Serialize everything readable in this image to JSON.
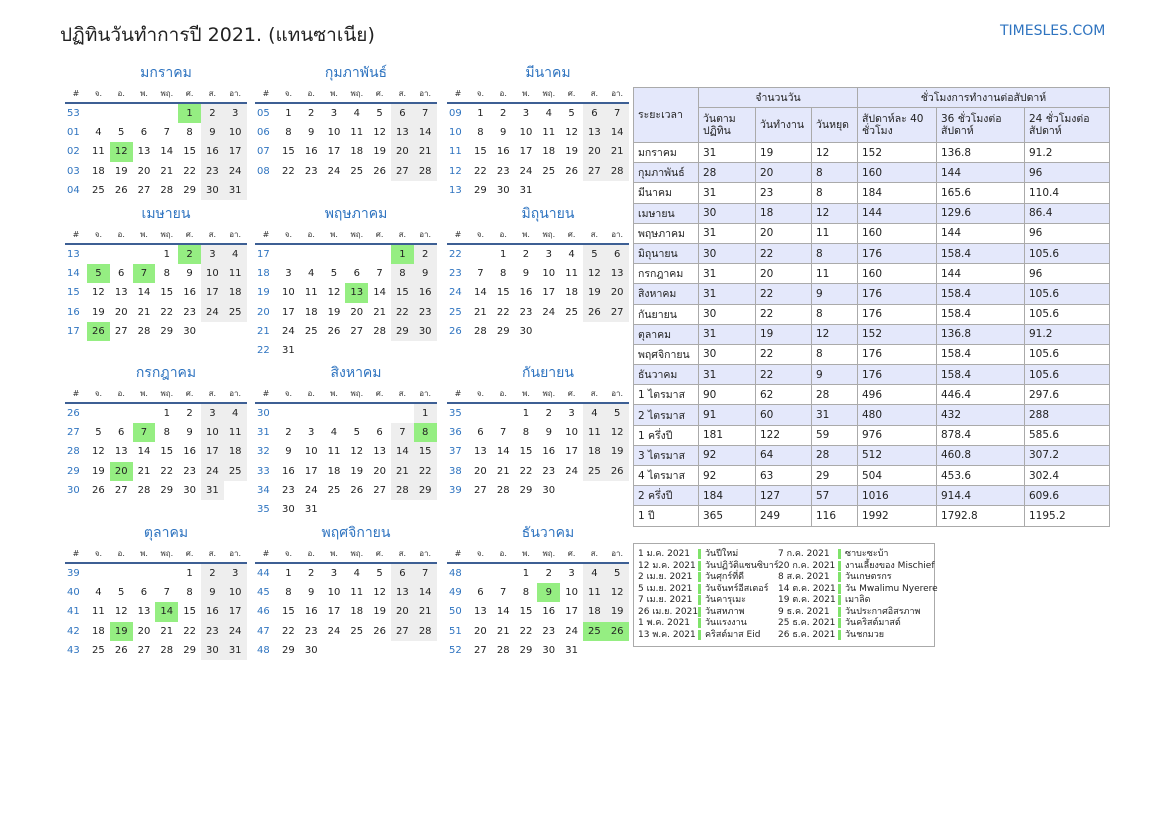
{
  "title": "ปฏิทินวันทำการปี 2021. (แทนซาเนีย)",
  "brand": "TIMESLES.COM",
  "colors": {
    "accent": "#2f74c0",
    "holiday": "#95ee82",
    "weekend": "#eeeeee",
    "row_alt": "#e4e8fb"
  },
  "weekday_headers": [
    "#",
    "จ.",
    "อ.",
    "พ.",
    "พฤ.",
    "ศ.",
    "ส.",
    "อา."
  ],
  "months": [
    {
      "name": "มกราคม",
      "weeks": [
        [
          "53",
          "",
          "",
          "",
          "",
          "1",
          "2",
          "3"
        ],
        [
          "01",
          "4",
          "5",
          "6",
          "7",
          "8",
          "9",
          "10"
        ],
        [
          "02",
          "11",
          "12",
          "13",
          "14",
          "15",
          "16",
          "17"
        ],
        [
          "03",
          "18",
          "19",
          "20",
          "21",
          "22",
          "23",
          "24"
        ],
        [
          "04",
          "25",
          "26",
          "27",
          "28",
          "29",
          "30",
          "31"
        ]
      ],
      "holidays": [
        "1",
        "12"
      ]
    },
    {
      "name": "กุมภาพันธ์",
      "weeks": [
        [
          "05",
          "1",
          "2",
          "3",
          "4",
          "5",
          "6",
          "7"
        ],
        [
          "06",
          "8",
          "9",
          "10",
          "11",
          "12",
          "13",
          "14"
        ],
        [
          "07",
          "15",
          "16",
          "17",
          "18",
          "19",
          "20",
          "21"
        ],
        [
          "08",
          "22",
          "23",
          "24",
          "25",
          "26",
          "27",
          "28"
        ]
      ],
      "holidays": []
    },
    {
      "name": "มีนาคม",
      "weeks": [
        [
          "09",
          "1",
          "2",
          "3",
          "4",
          "5",
          "6",
          "7"
        ],
        [
          "10",
          "8",
          "9",
          "10",
          "11",
          "12",
          "13",
          "14"
        ],
        [
          "11",
          "15",
          "16",
          "17",
          "18",
          "19",
          "20",
          "21"
        ],
        [
          "12",
          "22",
          "23",
          "24",
          "25",
          "26",
          "27",
          "28"
        ],
        [
          "13",
          "29",
          "30",
          "31",
          "",
          "",
          "",
          ""
        ]
      ],
      "holidays": []
    },
    {
      "name": "เมษายน",
      "weeks": [
        [
          "13",
          "",
          "",
          "",
          "1",
          "2",
          "3",
          "4"
        ],
        [
          "14",
          "5",
          "6",
          "7",
          "8",
          "9",
          "10",
          "11"
        ],
        [
          "15",
          "12",
          "13",
          "14",
          "15",
          "16",
          "17",
          "18"
        ],
        [
          "16",
          "19",
          "20",
          "21",
          "22",
          "23",
          "24",
          "25"
        ],
        [
          "17",
          "26",
          "27",
          "28",
          "29",
          "30",
          "",
          ""
        ]
      ],
      "holidays": [
        "2",
        "5",
        "7",
        "26"
      ]
    },
    {
      "name": "พฤษภาคม",
      "weeks": [
        [
          "17",
          "",
          "",
          "",
          "",
          "",
          "1",
          "2"
        ],
        [
          "18",
          "3",
          "4",
          "5",
          "6",
          "7",
          "8",
          "9"
        ],
        [
          "19",
          "10",
          "11",
          "12",
          "13",
          "14",
          "15",
          "16"
        ],
        [
          "20",
          "17",
          "18",
          "19",
          "20",
          "21",
          "22",
          "23"
        ],
        [
          "21",
          "24",
          "25",
          "26",
          "27",
          "28",
          "29",
          "30"
        ],
        [
          "22",
          "31",
          "",
          "",
          "",
          "",
          "",
          ""
        ]
      ],
      "holidays": [
        "1",
        "13"
      ]
    },
    {
      "name": "มิถุนายน",
      "weeks": [
        [
          "22",
          "",
          "1",
          "2",
          "3",
          "4",
          "5",
          "6"
        ],
        [
          "23",
          "7",
          "8",
          "9",
          "10",
          "11",
          "12",
          "13"
        ],
        [
          "24",
          "14",
          "15",
          "16",
          "17",
          "18",
          "19",
          "20"
        ],
        [
          "25",
          "21",
          "22",
          "23",
          "24",
          "25",
          "26",
          "27"
        ],
        [
          "26",
          "28",
          "29",
          "30",
          "",
          "",
          "",
          ""
        ]
      ],
      "holidays": []
    },
    {
      "name": "กรกฎาคม",
      "weeks": [
        [
          "26",
          "",
          "",
          "",
          "1",
          "2",
          "3",
          "4"
        ],
        [
          "27",
          "5",
          "6",
          "7",
          "8",
          "9",
          "10",
          "11"
        ],
        [
          "28",
          "12",
          "13",
          "14",
          "15",
          "16",
          "17",
          "18"
        ],
        [
          "29",
          "19",
          "20",
          "21",
          "22",
          "23",
          "24",
          "25"
        ],
        [
          "30",
          "26",
          "27",
          "28",
          "29",
          "30",
          "31",
          ""
        ]
      ],
      "holidays": [
        "7",
        "20"
      ]
    },
    {
      "name": "สิงหาคม",
      "weeks": [
        [
          "30",
          "",
          "",
          "",
          "",
          "",
          "",
          "1"
        ],
        [
          "31",
          "2",
          "3",
          "4",
          "5",
          "6",
          "7",
          "8"
        ],
        [
          "32",
          "9",
          "10",
          "11",
          "12",
          "13",
          "14",
          "15"
        ],
        [
          "33",
          "16",
          "17",
          "18",
          "19",
          "20",
          "21",
          "22"
        ],
        [
          "34",
          "23",
          "24",
          "25",
          "26",
          "27",
          "28",
          "29"
        ],
        [
          "35",
          "30",
          "31",
          "",
          "",
          "",
          "",
          ""
        ]
      ],
      "holidays": [
        "8"
      ]
    },
    {
      "name": "กันยายน",
      "weeks": [
        [
          "35",
          "",
          "",
          "1",
          "2",
          "3",
          "4",
          "5"
        ],
        [
          "36",
          "6",
          "7",
          "8",
          "9",
          "10",
          "11",
          "12"
        ],
        [
          "37",
          "13",
          "14",
          "15",
          "16",
          "17",
          "18",
          "19"
        ],
        [
          "38",
          "20",
          "21",
          "22",
          "23",
          "24",
          "25",
          "26"
        ],
        [
          "39",
          "27",
          "28",
          "29",
          "30",
          "",
          "",
          ""
        ]
      ],
      "holidays": []
    },
    {
      "name": "ตุลาคม",
      "weeks": [
        [
          "39",
          "",
          "",
          "",
          "",
          "1",
          "2",
          "3"
        ],
        [
          "40",
          "4",
          "5",
          "6",
          "7",
          "8",
          "9",
          "10"
        ],
        [
          "41",
          "11",
          "12",
          "13",
          "14",
          "15",
          "16",
          "17"
        ],
        [
          "42",
          "18",
          "19",
          "20",
          "21",
          "22",
          "23",
          "24"
        ],
        [
          "43",
          "25",
          "26",
          "27",
          "28",
          "29",
          "30",
          "31"
        ]
      ],
      "holidays": [
        "14",
        "19"
      ]
    },
    {
      "name": "พฤศจิกายน",
      "weeks": [
        [
          "44",
          "1",
          "2",
          "3",
          "4",
          "5",
          "6",
          "7"
        ],
        [
          "45",
          "8",
          "9",
          "10",
          "11",
          "12",
          "13",
          "14"
        ],
        [
          "46",
          "15",
          "16",
          "17",
          "18",
          "19",
          "20",
          "21"
        ],
        [
          "47",
          "22",
          "23",
          "24",
          "25",
          "26",
          "27",
          "28"
        ],
        [
          "48",
          "29",
          "30",
          "",
          "",
          "",
          "",
          ""
        ]
      ],
      "holidays": []
    },
    {
      "name": "ธันวาคม",
      "weeks": [
        [
          "48",
          "",
          "",
          "1",
          "2",
          "3",
          "4",
          "5"
        ],
        [
          "49",
          "6",
          "7",
          "8",
          "9",
          "10",
          "11",
          "12"
        ],
        [
          "50",
          "13",
          "14",
          "15",
          "16",
          "17",
          "18",
          "19"
        ],
        [
          "51",
          "20",
          "21",
          "22",
          "23",
          "24",
          "25",
          "26"
        ],
        [
          "52",
          "27",
          "28",
          "29",
          "30",
          "31",
          "",
          ""
        ]
      ],
      "holidays": [
        "9",
        "25",
        "26"
      ]
    }
  ],
  "summary": {
    "period_header": "ระยะเวลา",
    "days_group": "จำนวนวัน",
    "hours_group": "ชั่วโมงการทำงานต่อสัปดาห์",
    "columns": [
      "วันตามปฏิทิน",
      "วันทำงาน",
      "วันหยุด",
      "สัปดาห์ละ 40 ชั่วโมง",
      "36 ชั่วโมงต่อสัปดาห์",
      "24 ชั่วโมงต่อสัปดาห์"
    ],
    "rows": [
      [
        "มกราคม",
        "31",
        "19",
        "12",
        "152",
        "136.8",
        "91.2"
      ],
      [
        "กุมภาพันธ์",
        "28",
        "20",
        "8",
        "160",
        "144",
        "96"
      ],
      [
        "มีนาคม",
        "31",
        "23",
        "8",
        "184",
        "165.6",
        "110.4"
      ],
      [
        "เมษายน",
        "30",
        "18",
        "12",
        "144",
        "129.6",
        "86.4"
      ],
      [
        "พฤษภาคม",
        "31",
        "20",
        "11",
        "160",
        "144",
        "96"
      ],
      [
        "มิถุนายน",
        "30",
        "22",
        "8",
        "176",
        "158.4",
        "105.6"
      ],
      [
        "กรกฎาคม",
        "31",
        "20",
        "11",
        "160",
        "144",
        "96"
      ],
      [
        "สิงหาคม",
        "31",
        "22",
        "9",
        "176",
        "158.4",
        "105.6"
      ],
      [
        "กันยายน",
        "30",
        "22",
        "8",
        "176",
        "158.4",
        "105.6"
      ],
      [
        "ตุลาคม",
        "31",
        "19",
        "12",
        "152",
        "136.8",
        "91.2"
      ],
      [
        "พฤศจิกายน",
        "30",
        "22",
        "8",
        "176",
        "158.4",
        "105.6"
      ],
      [
        "ธันวาคม",
        "31",
        "22",
        "9",
        "176",
        "158.4",
        "105.6"
      ],
      [
        "1 ไตรมาส",
        "90",
        "62",
        "28",
        "496",
        "446.4",
        "297.6"
      ],
      [
        "2 ไตรมาส",
        "91",
        "60",
        "31",
        "480",
        "432",
        "288"
      ],
      [
        "1 ครึ่งปี",
        "181",
        "122",
        "59",
        "976",
        "878.4",
        "585.6"
      ],
      [
        "3 ไตรมาส",
        "92",
        "64",
        "28",
        "512",
        "460.8",
        "307.2"
      ],
      [
        "4 ไตรมาส",
        "92",
        "63",
        "29",
        "504",
        "453.6",
        "302.4"
      ],
      [
        "2 ครึ่งปี",
        "184",
        "127",
        "57",
        "1016",
        "914.4",
        "609.6"
      ],
      [
        "1 ปี",
        "365",
        "249",
        "116",
        "1992",
        "1792.8",
        "1195.2"
      ]
    ]
  },
  "holiday_list": [
    [
      "1 ม.ค. 2021",
      "วันปีใหม่"
    ],
    [
      "12 ม.ค. 2021",
      "วันปฏิวัติแซนซิบาร์"
    ],
    [
      "2 เม.ย. 2021",
      "วันศุกร์ที่ดี"
    ],
    [
      "5 เม.ย. 2021",
      "วันจันทร์อีสเตอร์"
    ],
    [
      "7 เม.ย. 2021",
      "วันคารุเมะ"
    ],
    [
      "26 เม.ย. 2021",
      "วันสหภาพ"
    ],
    [
      "1 พ.ค. 2021",
      "วันแรงงาน"
    ],
    [
      "13 พ.ค. 2021",
      "คริสต์มาส Eid"
    ],
    [
      "7 ก.ค. 2021",
      "ซาบะซะบ้า"
    ],
    [
      "20 ก.ค. 2021",
      "งานเลี้ยงของ Mischief"
    ],
    [
      "8 ส.ค. 2021",
      "วันเกษตรกร"
    ],
    [
      "14 ต.ค. 2021",
      "วัน Mwalimu Nyerere"
    ],
    [
      "19 ต.ค. 2021",
      "เมาลิด"
    ],
    [
      "9 ธ.ค. 2021",
      "วันประกาศอิสรภาพ"
    ],
    [
      "25 ธ.ค. 2021",
      "วันคริสต์มาสต์"
    ],
    [
      "26 ธ.ค. 2021",
      "วันชกมวย"
    ]
  ]
}
